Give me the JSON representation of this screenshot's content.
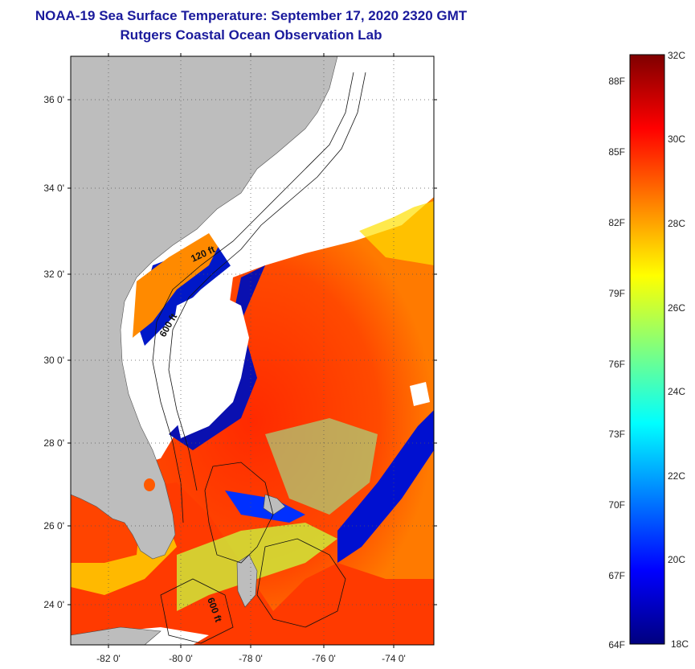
{
  "header": {
    "title": "NOAA-19 Sea Surface Temperature:  September 17, 2020 2320 GMT",
    "subtitle": "Rutgers Coastal Ocean Observation Lab"
  },
  "map": {
    "lat_labels": [
      "36 0'",
      "34 0'",
      "32 0'",
      "30 0'",
      "28 0'",
      "26 0'",
      "24 0'"
    ],
    "lon_labels": [
      "-82 0'",
      "-80 0'",
      "-78 0'",
      "-76 0'",
      "-74 0'"
    ],
    "lat_range": [
      23,
      37.2
    ],
    "lon_range": [
      -83,
      -73
    ],
    "contour_labels": [
      "120 ft",
      "600 ft",
      "600 ft"
    ],
    "land_color": "#bdbdbd",
    "cloud_color": "#ffffff"
  },
  "colorbar": {
    "celsius_labels": [
      "32C",
      "30C",
      "28C",
      "26C",
      "24C",
      "22C",
      "20C",
      "18C"
    ],
    "fahrenheit_labels": [
      "88F",
      "85F",
      "82F",
      "79F",
      "76F",
      "73F",
      "70F",
      "67F",
      "64F"
    ],
    "range_c": [
      18,
      32
    ],
    "colors": [
      "#00007f",
      "#0000ff",
      "#007fff",
      "#00ffff",
      "#7fff7f",
      "#ffff00",
      "#ff7f00",
      "#ff0000",
      "#7f0000"
    ]
  }
}
